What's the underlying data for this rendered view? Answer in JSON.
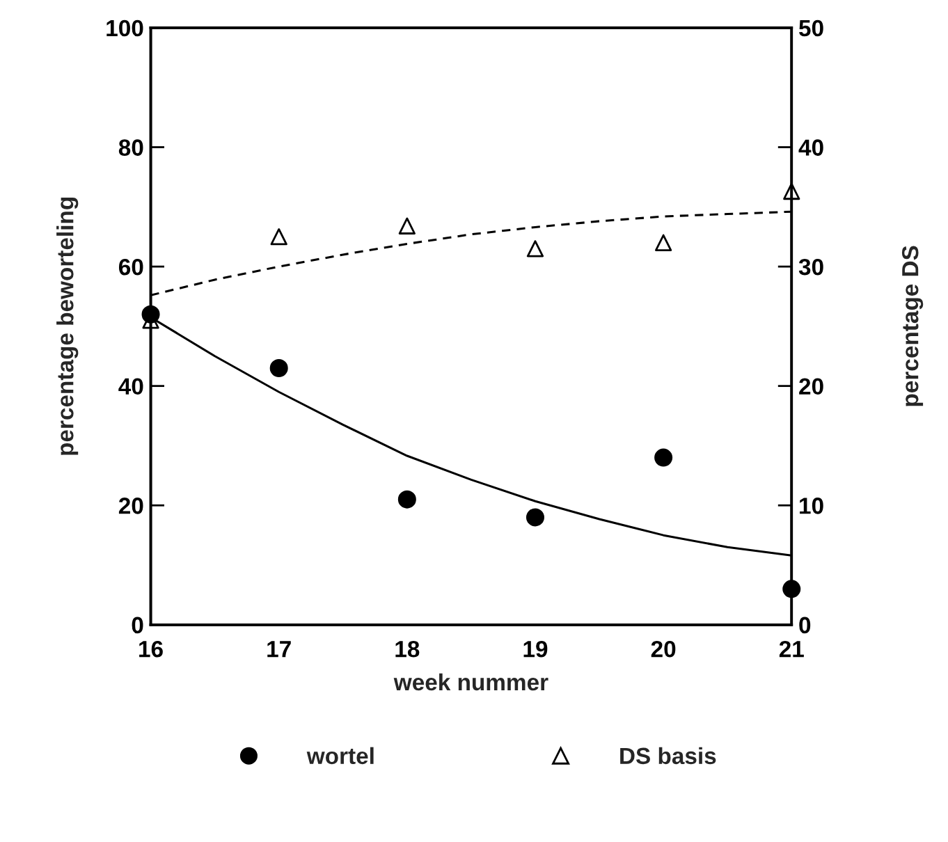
{
  "chart_data": {
    "type": "scatter",
    "xlabel": "week nummer",
    "ylabel": "percentage beworteling",
    "y2label": "percentage DS",
    "xlim": [
      16,
      21
    ],
    "xticks": [
      16,
      17,
      18,
      19,
      20,
      21
    ],
    "ylim": [
      0,
      100
    ],
    "yticks": [
      0,
      20,
      40,
      60,
      80,
      100
    ],
    "y2lim": [
      0,
      50
    ],
    "y2ticks": [
      0,
      10,
      20,
      30,
      40,
      50
    ],
    "grid": false,
    "legend": "bottom",
    "series": [
      {
        "name": "wortel",
        "marker": "circle",
        "color": "#000000",
        "x": [
          16,
          17,
          18,
          19,
          20,
          21
        ],
        "values": [
          52,
          43,
          21,
          18,
          28,
          6
        ]
      },
      {
        "name": "DS basis",
        "marker": "triangle",
        "color": "#000000",
        "axis": "y2",
        "x": [
          16,
          17,
          18,
          19,
          20,
          21
        ],
        "values": [
          25.5,
          32.5,
          33.4,
          31.5,
          32,
          36.3
        ]
      },
      {
        "type": "line",
        "marker": "none",
        "line_style": "solid",
        "color": "#000000",
        "x": [
          16,
          16.5,
          17,
          17.5,
          18,
          18.5,
          19,
          19.5,
          20,
          20.5,
          21
        ],
        "values": [
          51.5,
          45,
          39,
          33.5,
          28.3,
          24.3,
          20.7,
          17.7,
          15,
          13,
          11.6
        ]
      },
      {
        "type": "line",
        "marker": "none",
        "line_style": "dashed",
        "color": "#000000",
        "axis": "y2",
        "x": [
          16,
          16.5,
          17,
          17.5,
          18,
          18.5,
          19,
          19.5,
          20,
          20.5,
          21
        ],
        "values": [
          27.6,
          28.9,
          30,
          31,
          31.9,
          32.7,
          33.3,
          33.8,
          34.2,
          34.4,
          34.6
        ]
      }
    ]
  }
}
